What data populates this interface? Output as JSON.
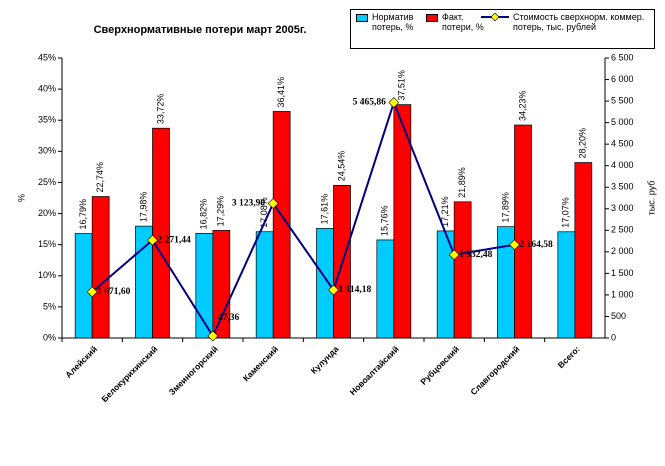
{
  "chart_data": {
    "type": "bar",
    "title": "Сверхнормативные потери март 2005г.",
    "categories": [
      "Алейский",
      "Белокурихинский",
      "Змеиногорский",
      "Каменский",
      "Кулунда",
      "Новоалтайский",
      "Рубцовский",
      "Славгородский",
      "Всего:"
    ],
    "series": [
      {
        "name": "Норматив потерь, %",
        "color": "#00ccff",
        "type": "bar",
        "values": [
          16.79,
          17.98,
          16.82,
          17.08,
          17.61,
          15.76,
          17.21,
          17.89,
          17.07
        ],
        "value_labels": [
          "16,79%",
          "17,98%",
          "16,82%",
          "17,08%",
          "17,61%",
          "15,76%",
          "17,21%",
          "17,89%",
          "17,07%"
        ]
      },
      {
        "name": "Факт. потери, %",
        "color": "#ff0000",
        "type": "bar",
        "values": [
          22.74,
          33.72,
          17.29,
          36.41,
          24.54,
          37.51,
          21.89,
          34.23,
          28.2
        ],
        "value_labels": [
          "22,74%",
          "33,72%",
          "17,29%",
          "36,41%",
          "24,54%",
          "37,51%",
          "21,89%",
          "34,23%",
          "28,20%"
        ]
      },
      {
        "name": "Стоимость сверхнорм. коммер. потерь, тыс. рублей",
        "color": "#000080",
        "marker_color": "#ffff00",
        "type": "line",
        "axis": "y2",
        "values": [
          1071.6,
          2271.44,
          47.36,
          3123.9,
          1114.18,
          5465.86,
          1932.48,
          2164.58,
          null
        ],
        "value_labels": [
          "1 071,60",
          "2 271,44",
          "47,36",
          "3 123,90",
          "1 114,18",
          "5 465,86",
          "1 932,48",
          "2 164,58",
          null
        ]
      }
    ],
    "ylabel": "%",
    "y2label": "тыс. руб",
    "ylim": [
      0,
      45
    ],
    "yticks": [
      {
        "value": 0,
        "label": "0%"
      },
      {
        "value": 5,
        "label": "5%"
      },
      {
        "value": 10,
        "label": "10%"
      },
      {
        "value": 15,
        "label": "15%"
      },
      {
        "value": 20,
        "label": "20%"
      },
      {
        "value": 25,
        "label": "25%"
      },
      {
        "value": 30,
        "label": "30%"
      },
      {
        "value": 35,
        "label": "35%"
      },
      {
        "value": 40,
        "label": "40%"
      },
      {
        "value": 45,
        "label": "45%"
      }
    ],
    "y2lim": [
      0,
      6500
    ],
    "y2ticks": [
      0,
      500,
      {
        "value": 1000,
        "label": "1 000"
      },
      {
        "value": 1500,
        "label": "1 500"
      },
      {
        "value": 2000,
        "label": "2 000"
      },
      {
        "value": 2500,
        "label": "2 500"
      },
      {
        "value": 3000,
        "label": "3 000"
      },
      {
        "value": 3500,
        "label": "3 500"
      },
      {
        "value": 4000,
        "label": "4 000"
      },
      {
        "value": 4500,
        "label": "4 500"
      },
      {
        "value": 5000,
        "label": "5 000"
      },
      {
        "value": 5500,
        "label": "5 500"
      },
      {
        "value": 6000,
        "label": "6 000"
      },
      {
        "value": 6500,
        "label": "6 500"
      }
    ],
    "legend": "top-right",
    "grid": false
  }
}
